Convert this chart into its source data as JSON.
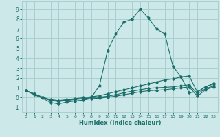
{
  "xlabel": "Humidex (Indice chaleur)",
  "ylabel": "",
  "xlim": [
    -0.5,
    23.5
  ],
  "ylim": [
    -1.5,
    9.8
  ],
  "background_color": "#cce8e8",
  "grid_color": "#aacece",
  "line_color": "#1a6e6a",
  "xticks": [
    0,
    1,
    2,
    3,
    4,
    5,
    6,
    7,
    8,
    9,
    10,
    11,
    12,
    13,
    14,
    15,
    16,
    17,
    18,
    19,
    20,
    21,
    22,
    23
  ],
  "yticks": [
    -1,
    0,
    1,
    2,
    3,
    4,
    5,
    6,
    7,
    8,
    9
  ],
  "lines": [
    {
      "x": [
        0,
        1,
        2,
        3,
        4,
        5,
        6,
        7,
        8,
        9,
        10,
        11,
        12,
        13,
        14,
        15,
        16,
        17,
        18,
        19,
        20,
        21,
        22,
        23
      ],
      "y": [
        0.7,
        0.4,
        0.05,
        -0.25,
        -0.35,
        -0.25,
        -0.15,
        -0.1,
        0.0,
        1.25,
        4.8,
        6.5,
        7.7,
        8.0,
        9.0,
        8.1,
        7.0,
        6.5,
        3.2,
        2.1,
        0.5,
        0.6,
        1.1,
        1.4
      ]
    },
    {
      "x": [
        0,
        1,
        2,
        3,
        4,
        5,
        6,
        7,
        8,
        9,
        10,
        11,
        12,
        13,
        14,
        15,
        16,
        17,
        18,
        19,
        20,
        21,
        22,
        23
      ],
      "y": [
        0.7,
        0.38,
        0.05,
        -0.2,
        -0.3,
        -0.2,
        -0.1,
        0.0,
        0.1,
        0.2,
        0.4,
        0.6,
        0.8,
        1.0,
        1.2,
        1.4,
        1.6,
        1.8,
        1.9,
        2.1,
        2.2,
        0.55,
        1.1,
        1.45
      ]
    },
    {
      "x": [
        0,
        1,
        2,
        3,
        4,
        5,
        6,
        7,
        8,
        9,
        10,
        11,
        12,
        13,
        14,
        15,
        16,
        17,
        18,
        19,
        20,
        21,
        22,
        23
      ],
      "y": [
        0.7,
        0.35,
        0.0,
        -0.3,
        -0.4,
        -0.3,
        -0.2,
        -0.1,
        0.0,
        0.05,
        0.15,
        0.3,
        0.5,
        0.65,
        0.8,
        0.95,
        1.0,
        1.05,
        1.1,
        1.2,
        1.3,
        0.4,
        0.9,
        1.2
      ]
    },
    {
      "x": [
        0,
        1,
        2,
        3,
        4,
        5,
        6,
        7,
        8,
        9,
        10,
        11,
        12,
        13,
        14,
        15,
        16,
        17,
        18,
        19,
        20,
        21,
        22,
        23
      ],
      "y": [
        0.7,
        0.3,
        -0.05,
        -0.5,
        -0.65,
        -0.45,
        -0.35,
        -0.25,
        -0.1,
        -0.05,
        0.05,
        0.15,
        0.3,
        0.45,
        0.6,
        0.7,
        0.75,
        0.8,
        0.9,
        1.0,
        1.1,
        0.15,
        0.8,
        1.1
      ]
    }
  ]
}
